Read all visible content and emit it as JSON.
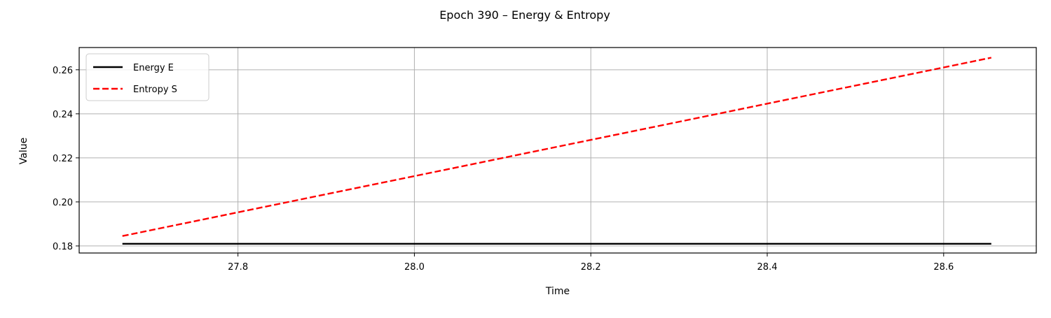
{
  "chart_data": {
    "type": "line",
    "title": "Epoch 390 – Energy & Entropy",
    "xlabel": "Time",
    "ylabel": "Value",
    "xlim": [
      27.62,
      28.705
    ],
    "ylim": [
      0.1768,
      0.2701
    ],
    "xticks": [
      27.8,
      28.0,
      28.2,
      28.4,
      28.6
    ],
    "xtick_labels": [
      "27.8",
      "28.0",
      "28.2",
      "28.4",
      "28.6"
    ],
    "yticks": [
      0.18,
      0.2,
      0.22,
      0.24,
      0.26
    ],
    "ytick_labels": [
      "0.18",
      "0.20",
      "0.22",
      "0.24",
      "0.26"
    ],
    "grid": true,
    "legend_position": "top-left",
    "series": [
      {
        "name": "Energy E",
        "color": "#000000",
        "style": "solid",
        "x": [
          27.669,
          28.654
        ],
        "y": [
          0.181,
          0.181
        ]
      },
      {
        "name": "Entropy S",
        "color": "#ff0000",
        "style": "dashed",
        "x": [
          27.669,
          28.654
        ],
        "y": [
          0.1845,
          0.2655
        ]
      }
    ]
  }
}
